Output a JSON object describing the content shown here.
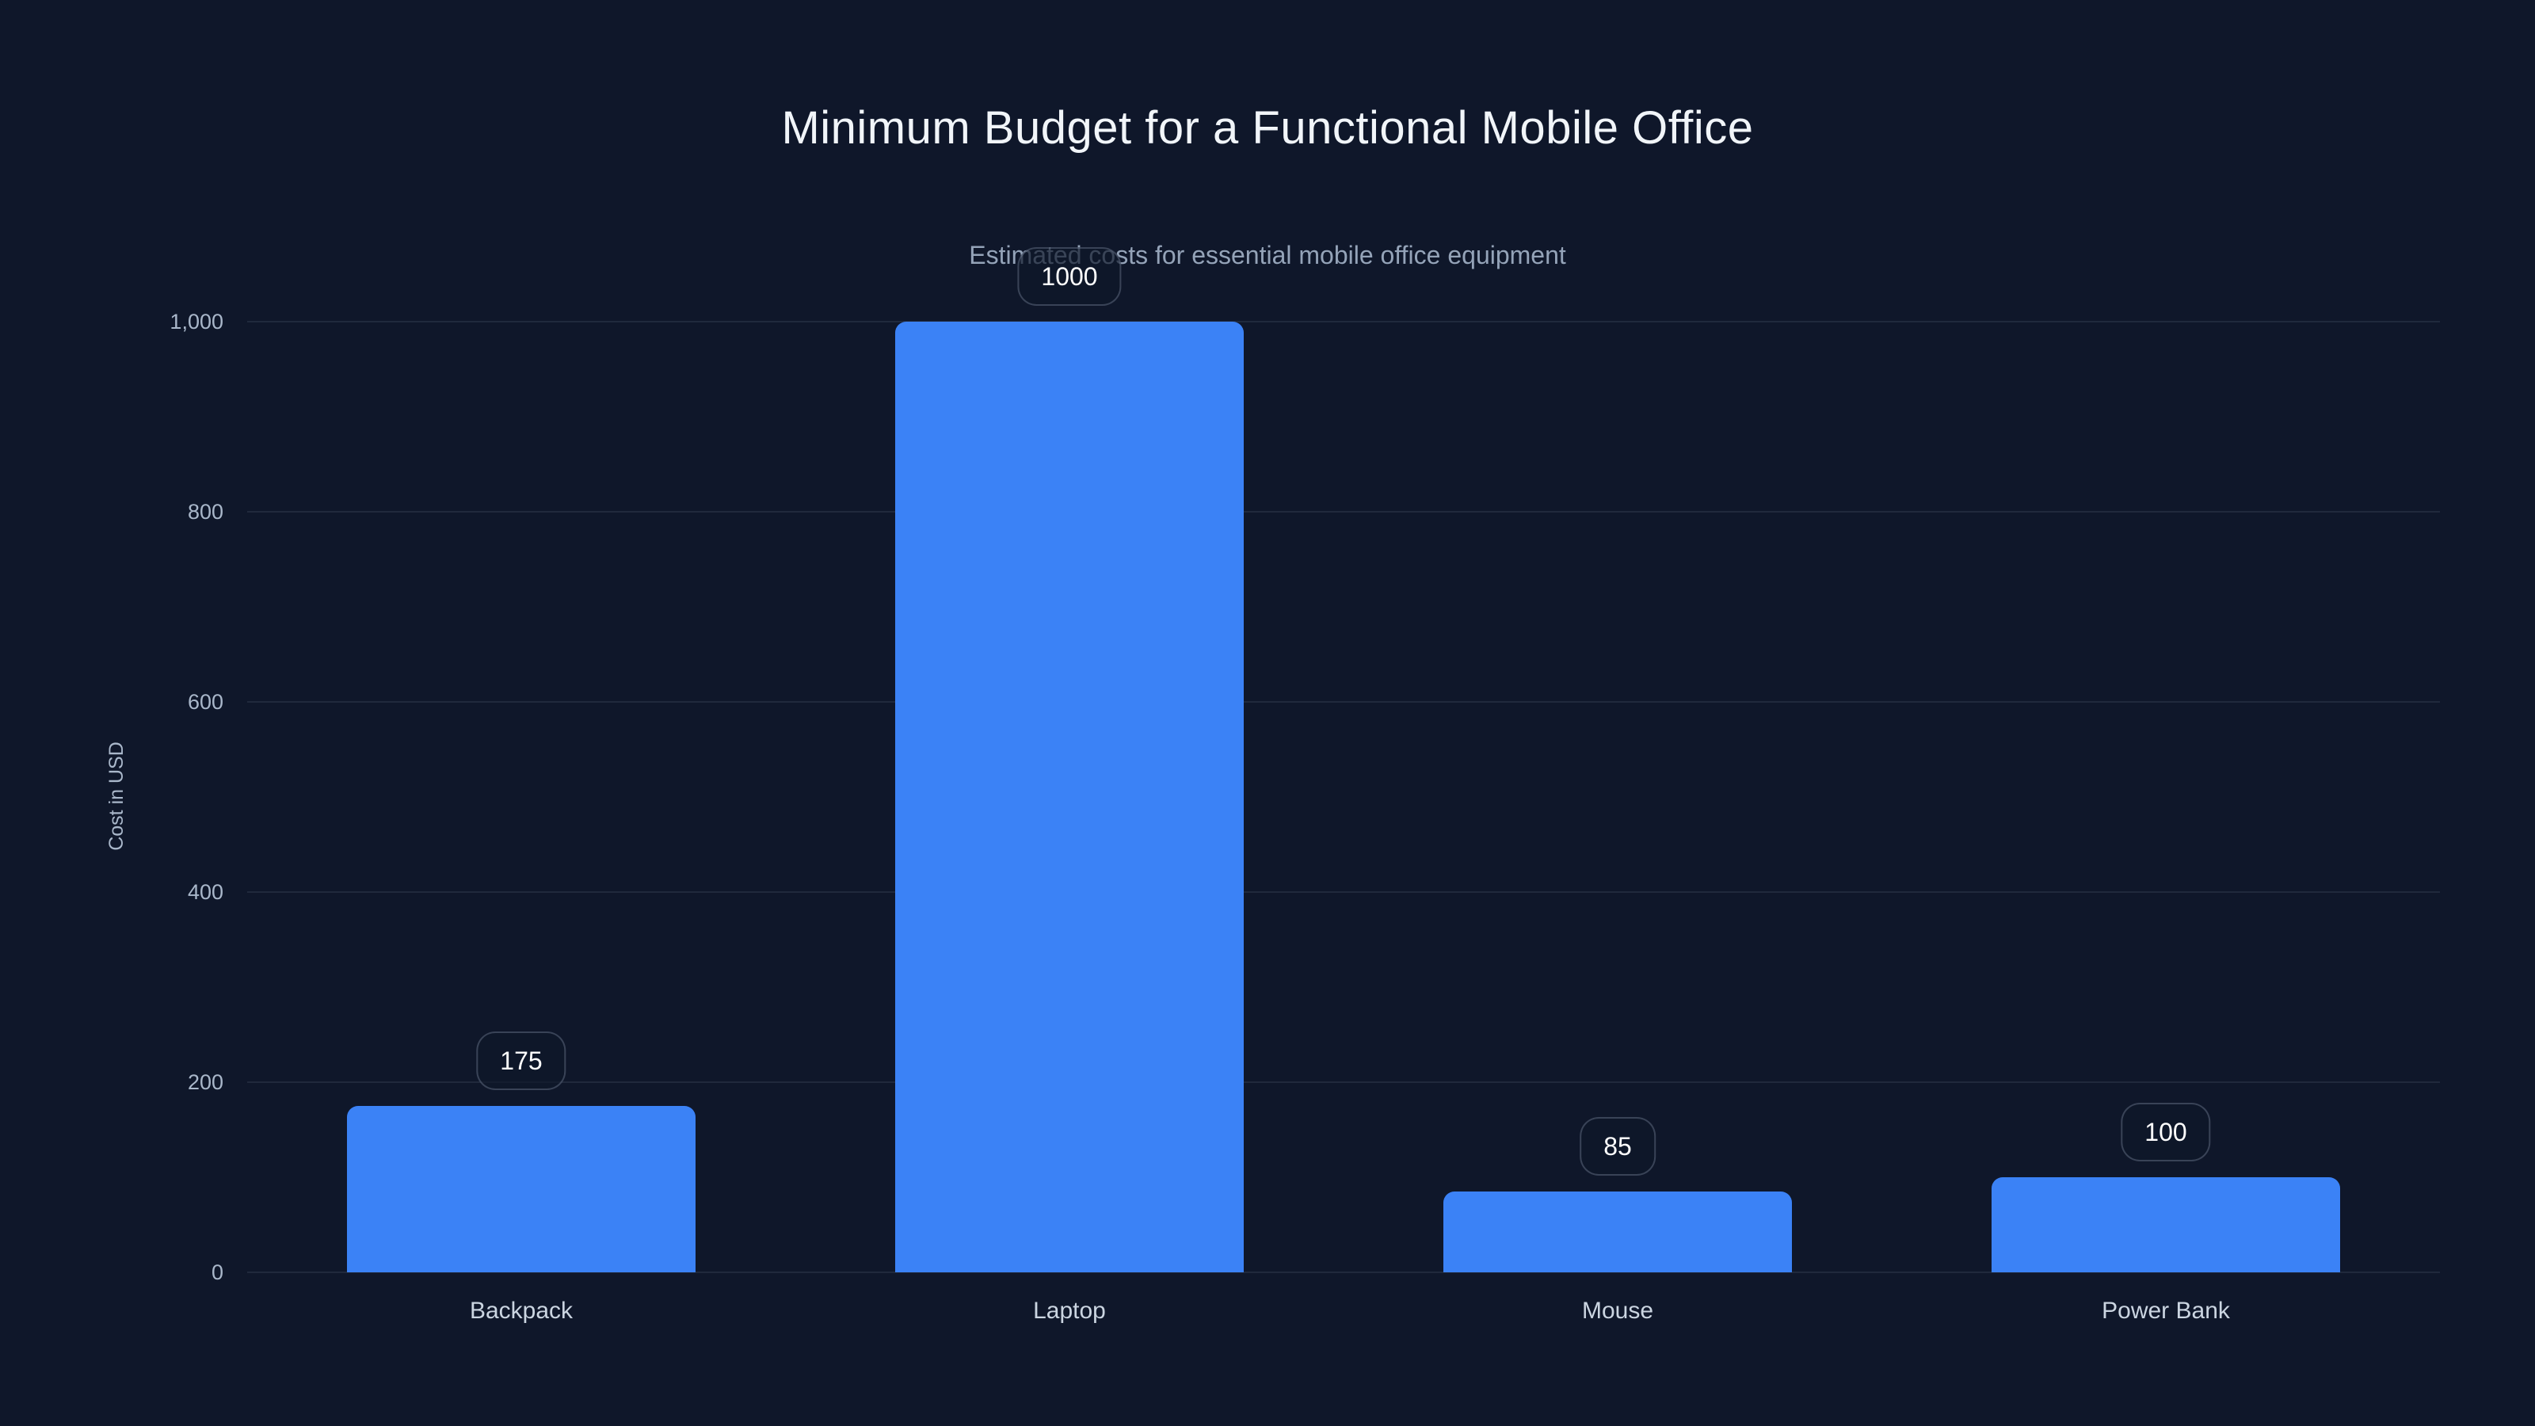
{
  "page": {
    "background": "#0f172a"
  },
  "chart_data": {
    "type": "bar",
    "title": "Minimum Budget for a Functional Mobile Office",
    "subtitle": "Estimated costs for essential mobile office equipment",
    "xlabel": "",
    "ylabel": "Cost in USD",
    "categories": [
      "Backpack",
      "Laptop",
      "Mouse",
      "Power Bank"
    ],
    "values": [
      175,
      1000,
      85,
      100
    ],
    "value_labels": [
      "175",
      "1000",
      "85",
      "100"
    ],
    "ylim": [
      0,
      1000
    ],
    "yticks": [
      0,
      200,
      400,
      600,
      800,
      1000
    ],
    "ytick_labels": [
      "0",
      "200",
      "400",
      "600",
      "800",
      "1,000"
    ],
    "grid": "horizontal-only",
    "legend": "none",
    "colors": {
      "background": "#0f172a",
      "bar": "#3b82f6",
      "title": "#f1f5f9",
      "subtitle": "#94a3b8",
      "tick_label": "#a9b7ca",
      "category_label": "#cbd5e1",
      "gridline": "rgba(148,163,184,0.13)",
      "badge_text": "#ffffff",
      "badge_border": "rgba(148,163,184,0.32)",
      "badge_background": "rgba(15,23,42,0.68)"
    }
  }
}
